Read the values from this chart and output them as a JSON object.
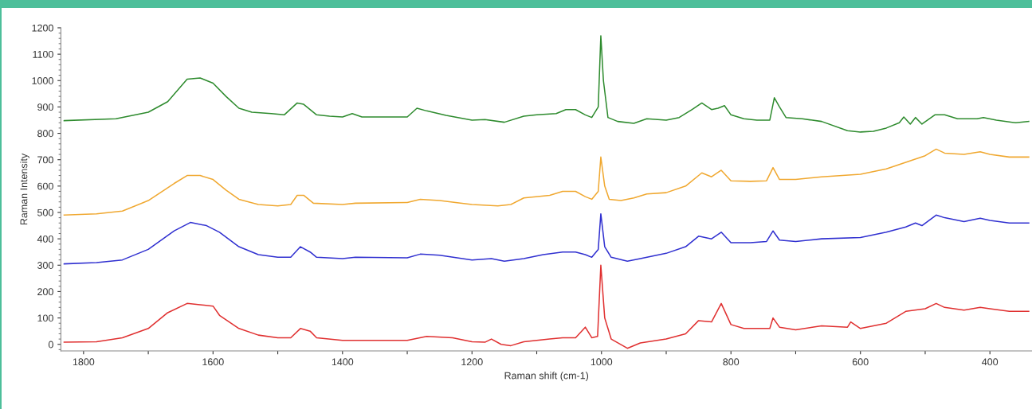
{
  "chart_data": {
    "type": "line",
    "xlabel": "Raman shift (cm-1)",
    "ylabel": "Raman Intensity",
    "xlim": [
      1835,
      335
    ],
    "ylim": [
      -25,
      1200
    ],
    "xticks": [
      1800,
      {
        "value": 1700,
        "label": null
      },
      1600,
      {
        "value": 1500,
        "label": null
      },
      1400,
      {
        "value": 1300,
        "label": null
      },
      1200,
      {
        "value": 1100,
        "label": null
      },
      1000,
      {
        "value": 900,
        "label": null
      },
      800,
      {
        "value": 700,
        "label": null
      },
      600,
      {
        "value": 500,
        "label": null
      },
      400
    ],
    "yticks": [
      0,
      100,
      200,
      300,
      400,
      500,
      600,
      700,
      800,
      900,
      1000,
      1100,
      1200
    ],
    "grid": false,
    "legend": false,
    "marker": "none",
    "line_style": "solid",
    "x": [
      1830,
      1750,
      1700,
      1670,
      1640,
      1620,
      1600,
      1580,
      1560,
      1540,
      1510,
      1490,
      1470,
      1460,
      1440,
      1420,
      1400,
      1385,
      1370,
      1300,
      1285,
      1270,
      1240,
      1200,
      1180,
      1150,
      1120,
      1100,
      1070,
      1055,
      1040,
      1025,
      1015,
      1005,
      1001,
      997,
      990,
      975,
      950,
      930,
      900,
      880,
      860,
      845,
      830,
      820,
      810,
      800,
      780,
      760,
      740,
      733,
      725,
      715,
      690,
      660,
      620,
      600,
      580,
      560,
      540,
      533,
      523,
      515,
      505,
      485,
      470,
      450,
      420,
      410,
      390,
      360,
      340
    ],
    "series": [
      {
        "color": "#2e8b2e",
        "values": [
          848,
          855,
          880,
          920,
          1005,
          1010,
          990,
          940,
          895,
          880,
          875,
          870,
          915,
          910,
          870,
          865,
          862,
          875,
          862,
          862,
          895,
          885,
          868,
          850,
          852,
          842,
          865,
          870,
          875,
          890,
          890,
          870,
          860,
          900,
          1170,
          1000,
          860,
          845,
          838,
          855,
          850,
          860,
          890,
          915,
          890,
          895,
          905,
          870,
          855,
          850,
          850,
          935,
          900,
          860,
          855,
          845,
          810,
          805,
          808,
          820,
          840,
          862,
          835,
          860,
          835,
          870,
          870,
          855,
          855,
          860,
          850,
          840,
          845
        ]
      },
      {
        "color": "#f0a830",
        "x": [
          1830,
          1780,
          1740,
          1700,
          1660,
          1640,
          1620,
          1600,
          1580,
          1560,
          1530,
          1500,
          1480,
          1470,
          1460,
          1445,
          1400,
          1380,
          1300,
          1280,
          1250,
          1200,
          1160,
          1140,
          1120,
          1080,
          1060,
          1040,
          1025,
          1015,
          1005,
          1001,
          995,
          988,
          970,
          950,
          930,
          900,
          870,
          845,
          830,
          815,
          800,
          770,
          745,
          735,
          725,
          700,
          660,
          600,
          560,
          530,
          500,
          483,
          470,
          440,
          415,
          400,
          370,
          340
        ],
        "values": [
          490,
          495,
          505,
          545,
          610,
          640,
          640,
          625,
          585,
          550,
          530,
          525,
          530,
          565,
          565,
          535,
          530,
          535,
          538,
          550,
          545,
          530,
          525,
          530,
          555,
          565,
          580,
          580,
          560,
          550,
          580,
          710,
          600,
          550,
          545,
          555,
          570,
          575,
          600,
          650,
          635,
          660,
          620,
          618,
          620,
          670,
          625,
          625,
          635,
          645,
          665,
          690,
          715,
          740,
          725,
          720,
          730,
          720,
          710,
          710
        ]
      },
      {
        "color": "#3030d0",
        "x": [
          1830,
          1780,
          1740,
          1700,
          1660,
          1635,
          1610,
          1590,
          1560,
          1530,
          1500,
          1480,
          1465,
          1450,
          1440,
          1400,
          1380,
          1300,
          1280,
          1250,
          1200,
          1170,
          1150,
          1120,
          1090,
          1060,
          1040,
          1025,
          1015,
          1005,
          1001,
          995,
          985,
          960,
          940,
          900,
          870,
          850,
          830,
          815,
          800,
          770,
          745,
          735,
          725,
          700,
          660,
          600,
          560,
          530,
          515,
          505,
          483,
          470,
          440,
          415,
          400,
          370,
          340
        ],
        "values": [
          305,
          310,
          320,
          360,
          430,
          462,
          450,
          425,
          370,
          340,
          330,
          330,
          370,
          350,
          330,
          325,
          330,
          328,
          342,
          338,
          320,
          325,
          315,
          325,
          340,
          350,
          350,
          340,
          330,
          360,
          495,
          370,
          330,
          315,
          325,
          345,
          370,
          410,
          400,
          425,
          385,
          385,
          390,
          430,
          395,
          390,
          400,
          405,
          425,
          445,
          460,
          450,
          490,
          480,
          465,
          478,
          470,
          460,
          460
        ]
      },
      {
        "color": "#e03030",
        "x": [
          1830,
          1780,
          1740,
          1700,
          1670,
          1640,
          1620,
          1600,
          1590,
          1560,
          1530,
          1500,
          1480,
          1465,
          1450,
          1440,
          1400,
          1300,
          1270,
          1230,
          1200,
          1180,
          1170,
          1155,
          1140,
          1120,
          1080,
          1060,
          1040,
          1025,
          1015,
          1006,
          1001,
          995,
          985,
          960,
          940,
          900,
          870,
          850,
          830,
          815,
          800,
          780,
          740,
          735,
          725,
          700,
          660,
          620,
          615,
          600,
          560,
          530,
          500,
          483,
          470,
          440,
          415,
          400,
          370,
          340
        ],
        "values": [
          8,
          10,
          25,
          60,
          120,
          155,
          150,
          145,
          110,
          60,
          35,
          25,
          25,
          60,
          50,
          25,
          15,
          15,
          30,
          25,
          10,
          8,
          20,
          0,
          -5,
          10,
          20,
          25,
          25,
          65,
          25,
          30,
          300,
          100,
          20,
          -15,
          5,
          20,
          40,
          90,
          85,
          155,
          75,
          60,
          60,
          100,
          65,
          55,
          70,
          65,
          85,
          60,
          80,
          125,
          135,
          155,
          140,
          130,
          140,
          135,
          125,
          125
        ]
      }
    ]
  }
}
